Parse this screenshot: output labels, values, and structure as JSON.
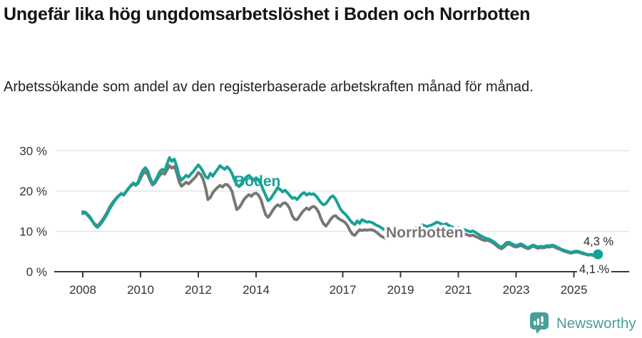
{
  "header": {
    "title": "Ungefär lika hög ungdomsarbetslöshet i Boden och Norrbotten",
    "subtitle": "Arbetssökande som andel av den registerbaserade arbetskraften månad för månad."
  },
  "chart_data": {
    "type": "line",
    "unit": "%",
    "frequency": "monthly",
    "x_start": "2008-01",
    "x_end": "2025-11",
    "ylim": [
      0,
      32
    ],
    "grid": true,
    "legend_position": "inline-labels",
    "y_ticks": [
      {
        "value": 30,
        "label": "30 %"
      },
      {
        "value": 20,
        "label": "20 %"
      },
      {
        "value": 10,
        "label": "10 %"
      },
      {
        "value": 0,
        "label": "0 %"
      }
    ],
    "x_ticks": [
      {
        "year": 2008,
        "label": "2008"
      },
      {
        "year": 2010,
        "label": "2010"
      },
      {
        "year": 2012,
        "label": "2012"
      },
      {
        "year": 2014,
        "label": "2014"
      },
      {
        "year": 2017,
        "label": "2017"
      },
      {
        "year": 2019,
        "label": "2019"
      },
      {
        "year": 2021,
        "label": "2021"
      },
      {
        "year": 2023,
        "label": "2023"
      },
      {
        "year": 2025,
        "label": "2025"
      }
    ],
    "series": [
      {
        "name": "Boden",
        "color": "#17a295",
        "end_label": "4,3 %",
        "end_dot": true,
        "values": [
          14.4,
          14.8,
          14.2,
          13.6,
          12.6,
          11.6,
          11.0,
          11.5,
          12.3,
          13.2,
          14.2,
          15.4,
          16.4,
          17.3,
          18.2,
          18.8,
          19.4,
          19.0,
          19.8,
          20.6,
          21.4,
          22.0,
          21.6,
          22.2,
          23.9,
          25.2,
          25.8,
          25.0,
          23.2,
          21.9,
          22.4,
          23.6,
          24.8,
          25.4,
          25.0,
          26.6,
          28.3,
          27.4,
          27.9,
          26.2,
          23.8,
          22.7,
          23.3,
          23.9,
          23.5,
          24.3,
          24.9,
          25.7,
          26.5,
          25.8,
          24.8,
          23.6,
          23.2,
          24.4,
          23.7,
          24.6,
          25.4,
          26.3,
          25.8,
          25.4,
          26.0,
          25.4,
          24.3,
          22.8,
          21.6,
          21.1,
          21.9,
          22.8,
          23.5,
          23.9,
          23.3,
          22.7,
          23.3,
          22.7,
          21.7,
          20.3,
          18.9,
          17.6,
          18.1,
          19.0,
          19.9,
          20.9,
          20.4,
          19.8,
          20.2,
          19.6,
          18.9,
          18.2,
          18.4,
          17.9,
          18.6,
          19.3,
          19.6,
          19.0,
          19.4,
          19.2,
          19.3,
          18.7,
          17.9,
          17.1,
          16.6,
          16.9,
          17.7,
          18.5,
          18.8,
          18.0,
          16.8,
          15.6,
          14.8,
          14.3,
          13.6,
          12.8,
          12.1,
          11.7,
          12.6,
          12.0,
          12.9,
          12.6,
          12.3,
          12.4,
          12.2,
          11.9,
          11.5,
          11.3,
          10.9,
          10.5,
          10.7,
          11.0,
          10.8,
          10.6,
          10.4,
          10.3,
          10.2,
          10.0,
          9.9,
          10.0,
          10.2,
          10.5,
          10.8,
          11.1,
          11.4,
          11.6,
          11.4,
          11.2,
          11.4,
          11.6,
          11.9,
          12.3,
          12.1,
          11.8,
          11.6,
          11.9,
          11.5,
          11.2,
          10.9,
          10.7,
          10.9,
          10.7,
          10.5,
          10.3,
          10.1,
          9.9,
          10.1,
          9.8,
          9.4,
          9.0,
          8.7,
          8.4,
          8.2,
          8.0,
          7.7,
          7.3,
          6.8,
          6.3,
          6.1,
          6.6,
          7.2,
          7.3,
          7.0,
          6.7,
          6.4,
          6.7,
          6.9,
          6.6,
          6.2,
          6.0,
          6.3,
          6.6,
          6.4,
          6.1,
          6.3,
          6.2,
          6.3,
          6.5,
          6.4,
          6.6,
          6.4,
          6.1,
          5.8,
          5.5,
          5.3,
          5.1,
          4.9,
          4.8,
          5.0,
          5.1,
          5.0,
          4.8,
          4.6,
          4.4,
          4.2,
          4.3,
          4.1,
          4.2,
          4.3
        ]
      },
      {
        "name": "Norrbotten",
        "color": "#777777",
        "end_label": "4,1 %",
        "end_dot": false,
        "values": [
          14.9,
          14.6,
          14.0,
          13.3,
          12.5,
          11.8,
          11.4,
          11.9,
          12.7,
          13.6,
          14.6,
          15.8,
          16.8,
          17.6,
          18.3,
          18.9,
          19.3,
          19.1,
          19.9,
          20.7,
          21.3,
          21.8,
          21.4,
          21.9,
          23.2,
          24.3,
          24.8,
          24.1,
          22.6,
          21.5,
          22.0,
          23.0,
          23.9,
          24.5,
          24.2,
          25.2,
          26.3,
          25.7,
          26.1,
          24.6,
          22.4,
          21.2,
          21.7,
          22.2,
          21.8,
          22.4,
          23.0,
          23.6,
          24.6,
          24.1,
          22.9,
          20.9,
          17.9,
          18.4,
          19.6,
          20.3,
          20.9,
          21.4,
          21.0,
          21.6,
          21.6,
          21.0,
          19.9,
          17.6,
          15.4,
          15.9,
          16.9,
          17.9,
          18.6,
          19.1,
          18.7,
          19.3,
          19.5,
          19.0,
          17.9,
          15.9,
          14.1,
          13.5,
          14.3,
          15.3,
          16.1,
          16.6,
          16.2,
          16.9,
          17.1,
          16.6,
          15.6,
          13.9,
          13.0,
          12.9,
          13.7,
          14.6,
          15.3,
          15.8,
          15.4,
          16.0,
          16.2,
          15.7,
          14.7,
          13.1,
          11.9,
          11.3,
          12.1,
          13.0,
          13.7,
          13.9,
          13.3,
          12.9,
          12.6,
          12.2,
          11.4,
          10.2,
          9.3,
          9.0,
          9.8,
          10.4,
          10.2,
          10.4,
          10.3,
          10.4,
          10.4,
          10.2,
          9.8,
          9.3,
          8.8,
          8.5,
          8.2,
          8.6,
          9.0,
          9.3,
          9.5,
          9.4,
          9.3,
          9.2,
          9.1,
          9.2,
          9.4,
          9.6,
          9.8,
          10.0,
          10.2,
          10.4,
          10.2,
          10.0,
          10.2,
          10.4,
          10.7,
          11.0,
          10.8,
          10.6,
          10.4,
          10.6,
          10.3,
          10.0,
          9.8,
          9.7,
          9.8,
          9.6,
          9.4,
          9.3,
          9.1,
          8.9,
          9.1,
          8.8,
          8.5,
          8.2,
          7.9,
          7.7,
          7.8,
          7.6,
          7.3,
          6.9,
          6.4,
          5.9,
          5.7,
          6.1,
          6.7,
          6.9,
          6.6,
          6.3,
          6.1,
          6.3,
          6.5,
          6.2,
          5.9,
          5.7,
          6.0,
          6.3,
          6.1,
          5.8,
          6.0,
          5.9,
          6.0,
          6.2,
          6.1,
          6.3,
          6.1,
          5.8,
          5.6,
          5.3,
          5.1,
          4.9,
          4.7,
          4.6,
          4.8,
          4.9,
          4.8,
          4.6,
          4.4,
          4.3,
          4.1,
          4.2,
          4.0,
          4.0,
          4.1
        ]
      }
    ]
  },
  "footer": {
    "brand": "Newsworthy"
  },
  "colors": {
    "accent_teal": "#17a295",
    "comparison_gray": "#777777",
    "axis": "#3a3a3a",
    "gridline": "#e2e2e2",
    "logo_teal": "#4a9e97"
  }
}
